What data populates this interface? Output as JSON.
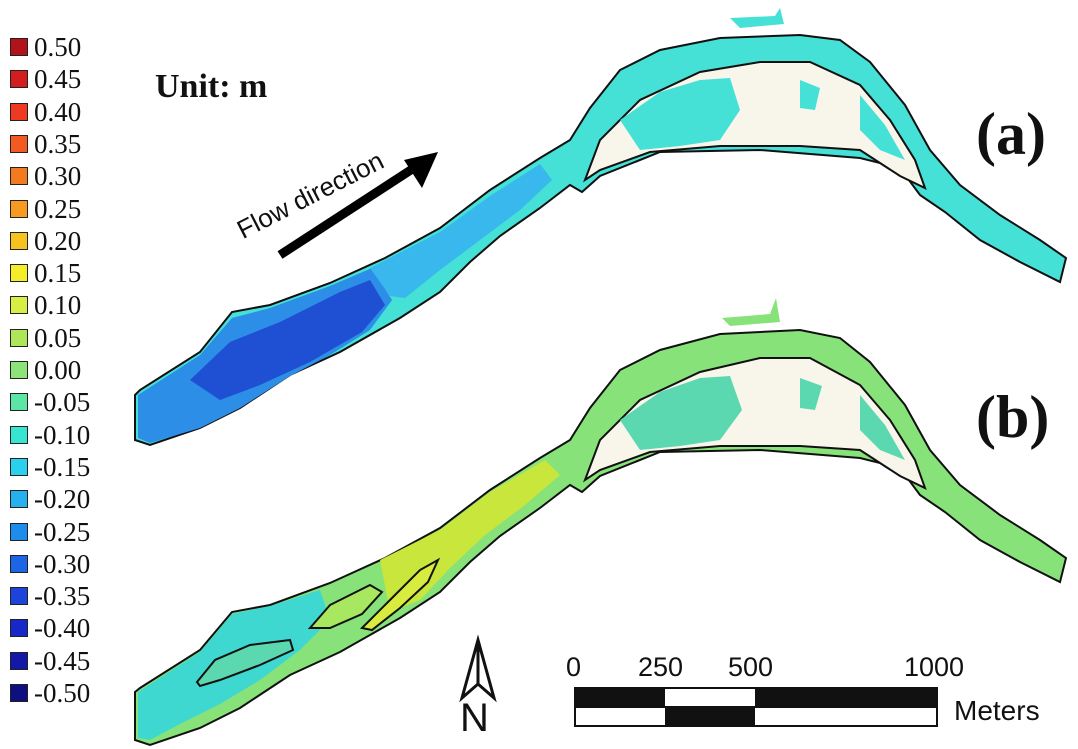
{
  "legend": {
    "items": [
      {
        "label": "0.50",
        "color": "#b2121a"
      },
      {
        "label": "0.45",
        "color": "#d41e1e"
      },
      {
        "label": "0.40",
        "color": "#ee3a22"
      },
      {
        "label": "0.35",
        "color": "#f25a22"
      },
      {
        "label": "0.30",
        "color": "#f47a20"
      },
      {
        "label": "0.25",
        "color": "#f79a22"
      },
      {
        "label": "0.20",
        "color": "#f6c21e"
      },
      {
        "label": "0.15",
        "color": "#f4ee2a"
      },
      {
        "label": "0.10",
        "color": "#d9ee44"
      },
      {
        "label": "0.05",
        "color": "#aee65a"
      },
      {
        "label": "0.00",
        "color": "#8ee27a"
      },
      {
        "label": "-0.05",
        "color": "#5ce6a6"
      },
      {
        "label": "-0.10",
        "color": "#36e6d2"
      },
      {
        "label": "-0.15",
        "color": "#2ad0ec"
      },
      {
        "label": "-0.20",
        "color": "#26b0ee"
      },
      {
        "label": "-0.25",
        "color": "#1e8ceb"
      },
      {
        "label": "-0.30",
        "color": "#1c66e6"
      },
      {
        "label": "-0.35",
        "color": "#1a44da"
      },
      {
        "label": "-0.40",
        "color": "#1628c8"
      },
      {
        "label": "-0.45",
        "color": "#1418a6"
      },
      {
        "label": "-0.50",
        "color": "#0e1080"
      }
    ]
  },
  "unit_label": "Unit: m",
  "flow_label": "Flow direction",
  "panels": {
    "a": "(a)",
    "b": "(b)"
  },
  "scale": {
    "ticks": [
      "0",
      "250",
      "500",
      "1000"
    ],
    "unit": "Meters"
  },
  "north": "N",
  "colors": {
    "river_a_main": "#45e0d6",
    "river_a_dark": "#1f4fd2",
    "river_a_mid": "#2c8ee6",
    "river_b_main": "#88e27a",
    "river_b_yellow": "#c8e63c",
    "river_b_cyan": "#3ed8d0",
    "island": "#f8f6ea"
  }
}
